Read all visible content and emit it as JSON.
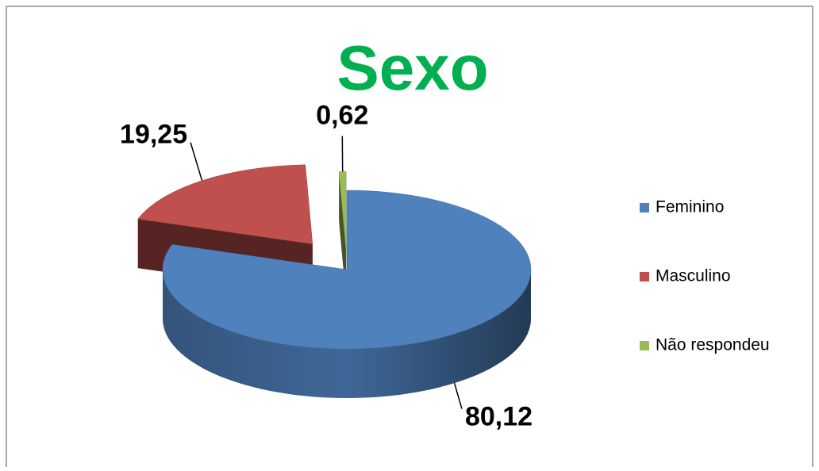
{
  "chart_data": {
    "type": "pie",
    "title": "Sexo",
    "categories": [
      "Feminino",
      "Masculino",
      "Não respondeu"
    ],
    "values": [
      80.12,
      19.25,
      0.62
    ],
    "value_labels": [
      "80,12",
      "19,25",
      "0,62"
    ],
    "colors": [
      "#4f81bd",
      "#c0504d",
      "#9bbb59"
    ],
    "legend": "right"
  }
}
